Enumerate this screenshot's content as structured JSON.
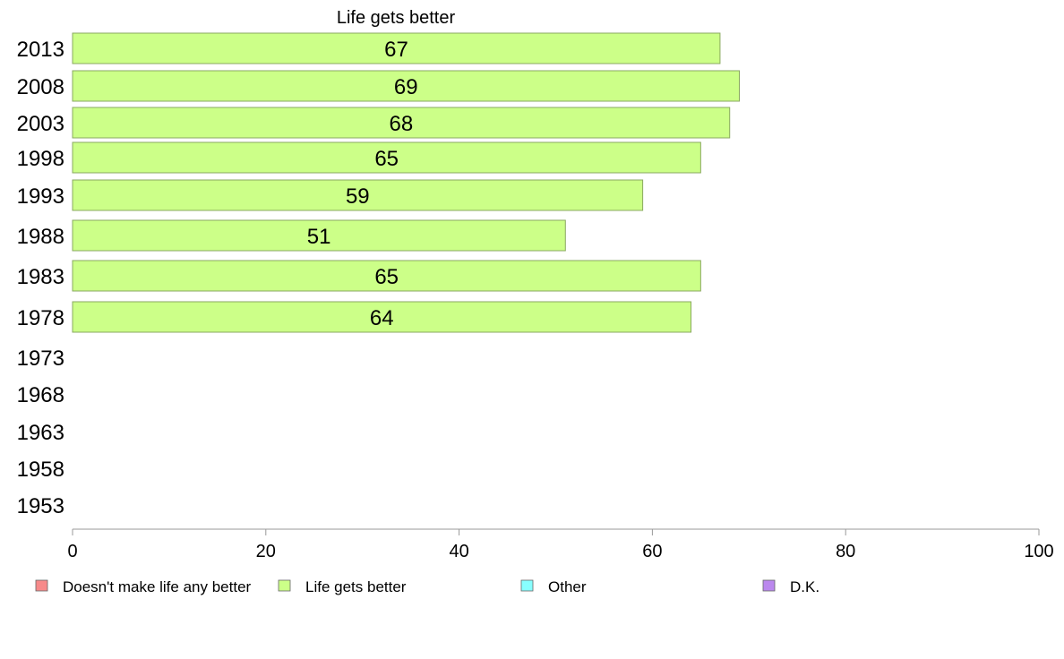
{
  "chart_data": {
    "type": "bar",
    "orientation": "horizontal",
    "title": "Life gets better",
    "categories": [
      "2013",
      "2008",
      "2003",
      "1998",
      "1993",
      "1988",
      "1983",
      "1978",
      "1973",
      "1968",
      "1963",
      "1958",
      "1953"
    ],
    "series": [
      {
        "name": "Life gets better",
        "color": "#ccff88",
        "values": [
          67,
          69,
          68,
          65,
          59,
          51,
          65,
          64,
          null,
          null,
          null,
          null,
          null
        ]
      }
    ],
    "xlim": [
      0,
      100
    ],
    "xticks": [
      "0",
      "20",
      "40",
      "60",
      "80",
      "100"
    ],
    "grid": false,
    "legend_position": "bottom",
    "legend": [
      {
        "label": "Doesn't make life any better",
        "color": "#f78a8a"
      },
      {
        "label": "Life gets better",
        "color": "#ccff88"
      },
      {
        "label": "Other",
        "color": "#88ffff"
      },
      {
        "label": "D.K.",
        "color": "#bb88ee"
      }
    ]
  }
}
